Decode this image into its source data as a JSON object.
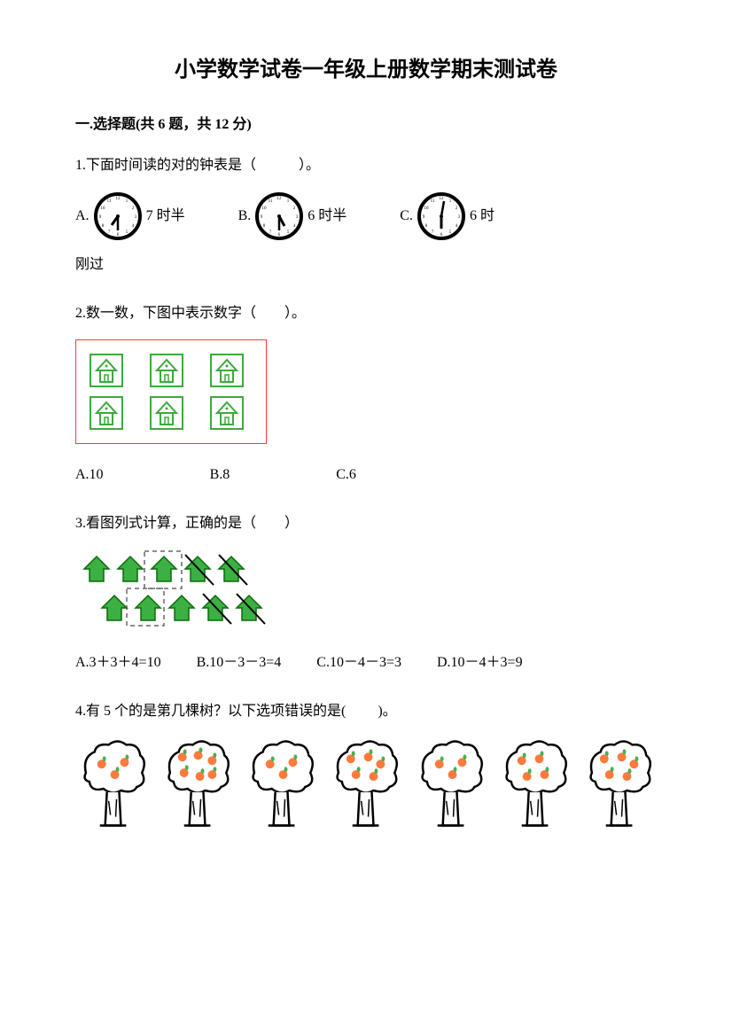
{
  "title": "小学数学试卷一年级上册数学期末测试卷",
  "section1": {
    "header": "一.选择题(共 6 题，共 12 分)"
  },
  "q1": {
    "text": "1.下面时间读的对的钟表是（　　　）。",
    "optA_prefix": "A.",
    "optA_label": "7 时半",
    "optB_prefix": "B.",
    "optB_label": "6 时半",
    "optC_prefix": "C.",
    "optC_label": "6 时",
    "tail": "刚过",
    "clock_color": "#000000",
    "clock_face": "#ffffff"
  },
  "q2": {
    "text": "2.数一数，下图中表示数字（　　）。",
    "house_color": "#3caa3c",
    "house_bg": "#ffffff",
    "box_border": "#ff3b30",
    "optA": "A.10",
    "optB": "B.8",
    "optC": "C.6"
  },
  "q3": {
    "text": "3.看图列式计算，正确的是（　　）",
    "arrow_fill": "#3cb043",
    "arrow_stroke": "#0a6b0a",
    "dash_color": "#666666",
    "optA": "A.3＋3＋4=10",
    "optB": "B.10－3－3=4",
    "optC": "C.10－4－3=3",
    "optD": "D.10－4＋3=9"
  },
  "q4": {
    "text": "4.有 5 个的是第几棵树？以下选项错误的是(　　 )。",
    "tree_stroke": "#000000",
    "apple_fill": "#ff7a3c",
    "leaf_fill": "#4caf50",
    "apple_counts": [
      3,
      6,
      3,
      5,
      3,
      4,
      5
    ]
  }
}
